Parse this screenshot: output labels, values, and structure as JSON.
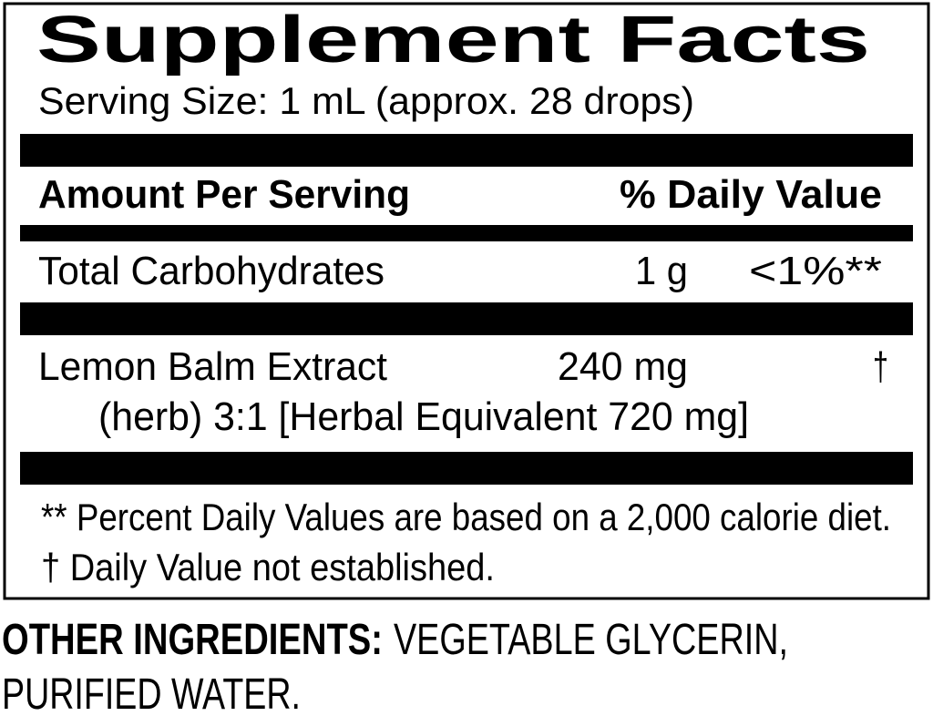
{
  "title": "Supplement Facts",
  "serving_size": "Serving Size: 1 mL (approx. 28 drops)",
  "header": {
    "amount": "Amount Per Serving",
    "daily_value": "% Daily Value"
  },
  "rows": [
    {
      "name": "Total Carbohydrates",
      "amount": "1 g",
      "dv": "<1%**"
    },
    {
      "name": "Lemon Balm Extract",
      "amount": "240 mg",
      "dv": "†",
      "detail": "(herb) 3:1 [Herbal Equivalent 720 mg]"
    }
  ],
  "footnotes": [
    "** Percent Daily Values are based on a 2,000 calorie diet.",
    "† Daily Value not established."
  ],
  "other_ingredients": {
    "label": "OTHER INGREDIENTS:",
    "line1": "VEGETABLE GLYCERIN,",
    "line2": "PURIFIED WATER."
  }
}
